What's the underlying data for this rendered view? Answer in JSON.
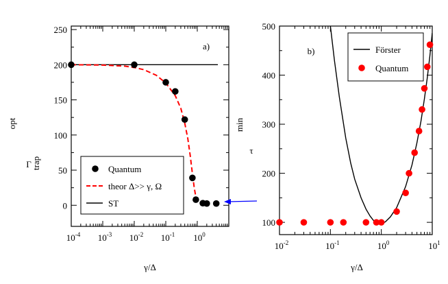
{
  "chart_data": [
    {
      "type": "line",
      "panel_label": "a)",
      "xscale": "log",
      "xlim": [
        0.0001,
        10
      ],
      "ylim": [
        -30,
        255
      ],
      "x_ticks": [
        {
          "value": 0.0001,
          "base": "10",
          "exp": "-4"
        },
        {
          "value": 0.001,
          "base": "10",
          "exp": "-3"
        },
        {
          "value": 0.01,
          "base": "10",
          "exp": "-2"
        },
        {
          "value": 0.1,
          "base": "10",
          "exp": "-1"
        },
        {
          "value": 1,
          "base": "10",
          "exp": "0"
        }
      ],
      "y_ticks": [
        0,
        50,
        100,
        150,
        200,
        250
      ],
      "xlabel": "γ/Δ",
      "ylabel_main": "Γ",
      "ylabel_sub": "trap",
      "ylabel_sup": "opt",
      "legend_position": "bottom-left",
      "series": [
        {
          "name": "Quantum",
          "kind": "markers",
          "color": "#000000",
          "x": [
            0.0001,
            0.01,
            0.1,
            0.2,
            0.4,
            0.7,
            0.9,
            1.5,
            2.0,
            4.0
          ],
          "y": [
            200,
            200,
            175,
            162,
            122,
            39,
            8,
            3,
            2.5,
            2.5
          ]
        },
        {
          "name": "theor Δ>> γ, Ω",
          "kind": "dashed",
          "color": "#ff0000",
          "x": [
            0.0001,
            0.001,
            0.005,
            0.01,
            0.02,
            0.05,
            0.1,
            0.2,
            0.3,
            0.4,
            0.5,
            0.6,
            0.7,
            0.8,
            0.9,
            1.0
          ],
          "y": [
            200,
            199.5,
            198,
            196,
            193,
            185,
            174,
            156,
            138,
            117,
            95,
            70,
            45,
            25,
            12,
            5
          ]
        },
        {
          "name": "ST",
          "kind": "solid",
          "color": "#000000",
          "x": [
            0.0001,
            4.5
          ],
          "y": [
            200,
            200
          ]
        }
      ]
    },
    {
      "type": "line",
      "panel_label": "b)",
      "xscale": "log",
      "xlim": [
        0.01,
        10
      ],
      "ylim": [
        75,
        500
      ],
      "x_ticks": [
        {
          "value": 0.01,
          "base": "10",
          "exp": "-2"
        },
        {
          "value": 0.1,
          "base": "10",
          "exp": "-1"
        },
        {
          "value": 1,
          "base": "10",
          "exp": "0"
        },
        {
          "value": 10,
          "base": "10",
          "exp": "1"
        }
      ],
      "y_ticks": [
        100,
        200,
        300,
        400,
        500
      ],
      "xlabel": "γ/Δ",
      "ylabel_main": "τ",
      "ylabel_sup": "min",
      "legend_position": "top-right",
      "series": [
        {
          "name": "Förster",
          "kind": "solid",
          "color": "#000000",
          "x": [
            0.1,
            0.12,
            0.15,
            0.2,
            0.25,
            0.3,
            0.4,
            0.5,
            0.6,
            0.7,
            0.8,
            0.9,
            1.0,
            1.2,
            1.5,
            2.0,
            3.0,
            4.0,
            5.0,
            6.0,
            7.0,
            8.0,
            9.0,
            10.0
          ],
          "y": [
            500,
            430,
            355,
            272,
            221,
            188,
            150,
            127,
            113,
            104,
            99,
            97,
            97,
            101,
            111,
            130,
            173,
            217,
            262,
            306,
            351,
            395,
            440,
            486
          ]
        },
        {
          "name": "Quantum",
          "kind": "markers",
          "color": "#ff0000",
          "x": [
            0.01,
            0.03,
            0.1,
            0.18,
            0.5,
            0.8,
            1.0,
            2.0,
            3.0,
            3.5,
            4.5,
            5.5,
            6.3,
            7.0,
            8.0,
            9.0
          ],
          "y": [
            100,
            100,
            100,
            100,
            100,
            100,
            100,
            122,
            160,
            200,
            242,
            286,
            330,
            373,
            417,
            462
          ]
        }
      ]
    }
  ]
}
